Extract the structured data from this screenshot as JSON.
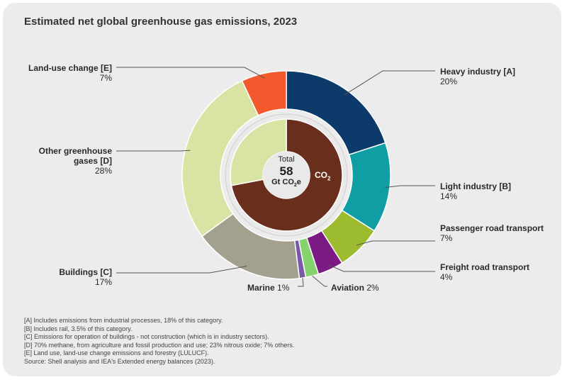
{
  "title": "Estimated net global greenhouse gas emissions, 2023",
  "center": {
    "line1": "Total",
    "line2": "58",
    "line3_prefix": "Gt CO",
    "line3_sub": "2",
    "line3_suffix": "e"
  },
  "co2_label": {
    "prefix": "CO",
    "sub": "2"
  },
  "chart_data": {
    "type": "pie",
    "title": "Estimated net global greenhouse gas emissions, 2023",
    "units": "%",
    "total": "58 Gt CO2e",
    "outer_ring": [
      {
        "name": "Heavy industry [A]",
        "label": "Heavy industry [A]",
        "pct_label": "20%",
        "value": 20,
        "color": "#0b3a6b"
      },
      {
        "name": "Light industry [B]",
        "label": "Light industry [B]",
        "pct_label": "14%",
        "value": 14,
        "color": "#0f9ea3"
      },
      {
        "name": "Passenger road transport",
        "label": "Passenger road transport",
        "pct_label": "7%",
        "value": 7,
        "color": "#9dbb2e"
      },
      {
        "name": "Freight road transport",
        "label": "Freight road transport",
        "pct_label": "4%",
        "value": 4,
        "color": "#7a1a82"
      },
      {
        "name": "Aviation",
        "label": "Aviation",
        "pct_label": "2%",
        "value": 2,
        "color": "#86d36e"
      },
      {
        "name": "Marine",
        "label": "Marine",
        "pct_label": "1%",
        "value": 1,
        "color": "#7a5aa8"
      },
      {
        "name": "Buildings [C]",
        "label": "Buildings [C]",
        "pct_label": "17%",
        "value": 17,
        "color": "#a3a08e"
      },
      {
        "name": "Other greenhouse gases [D]",
        "label": "Other greenhouse gases [D]",
        "pct_label": "28%",
        "value": 28,
        "color": "#d8e3a4"
      },
      {
        "name": "Land-use change [E]",
        "label": "Land-use change [E]",
        "pct_label": "7%",
        "value": 7,
        "color": "#f25a2e"
      }
    ],
    "inner_ring": [
      {
        "name": "CO2",
        "value": 72,
        "color": "#6a2e1c"
      },
      {
        "name": "Other greenhouse gases",
        "value": 28,
        "color": "#d8e3a4"
      }
    ]
  },
  "footnotes": [
    "[A] Includes emissions from industrial processes, 18% of this category.",
    "[B] Includes rail, 3.5% of this category.",
    "[C] Emissions for operation of buildings - not construction (which is in industry sectors).",
    "[D] 70% methane, from agriculture and fossil production and use; 23% nitrous oxide; 7% others.",
    "[E] Land use, land-use change emissions and forestry (LULUCF).",
    "Source: Shell analysis and IEA's Extended energy balances (2023)."
  ],
  "colors": {
    "background": "#ececec",
    "leader": "#555555",
    "ring_gap": "#e9e9e9",
    "separator": "#ffffff"
  }
}
